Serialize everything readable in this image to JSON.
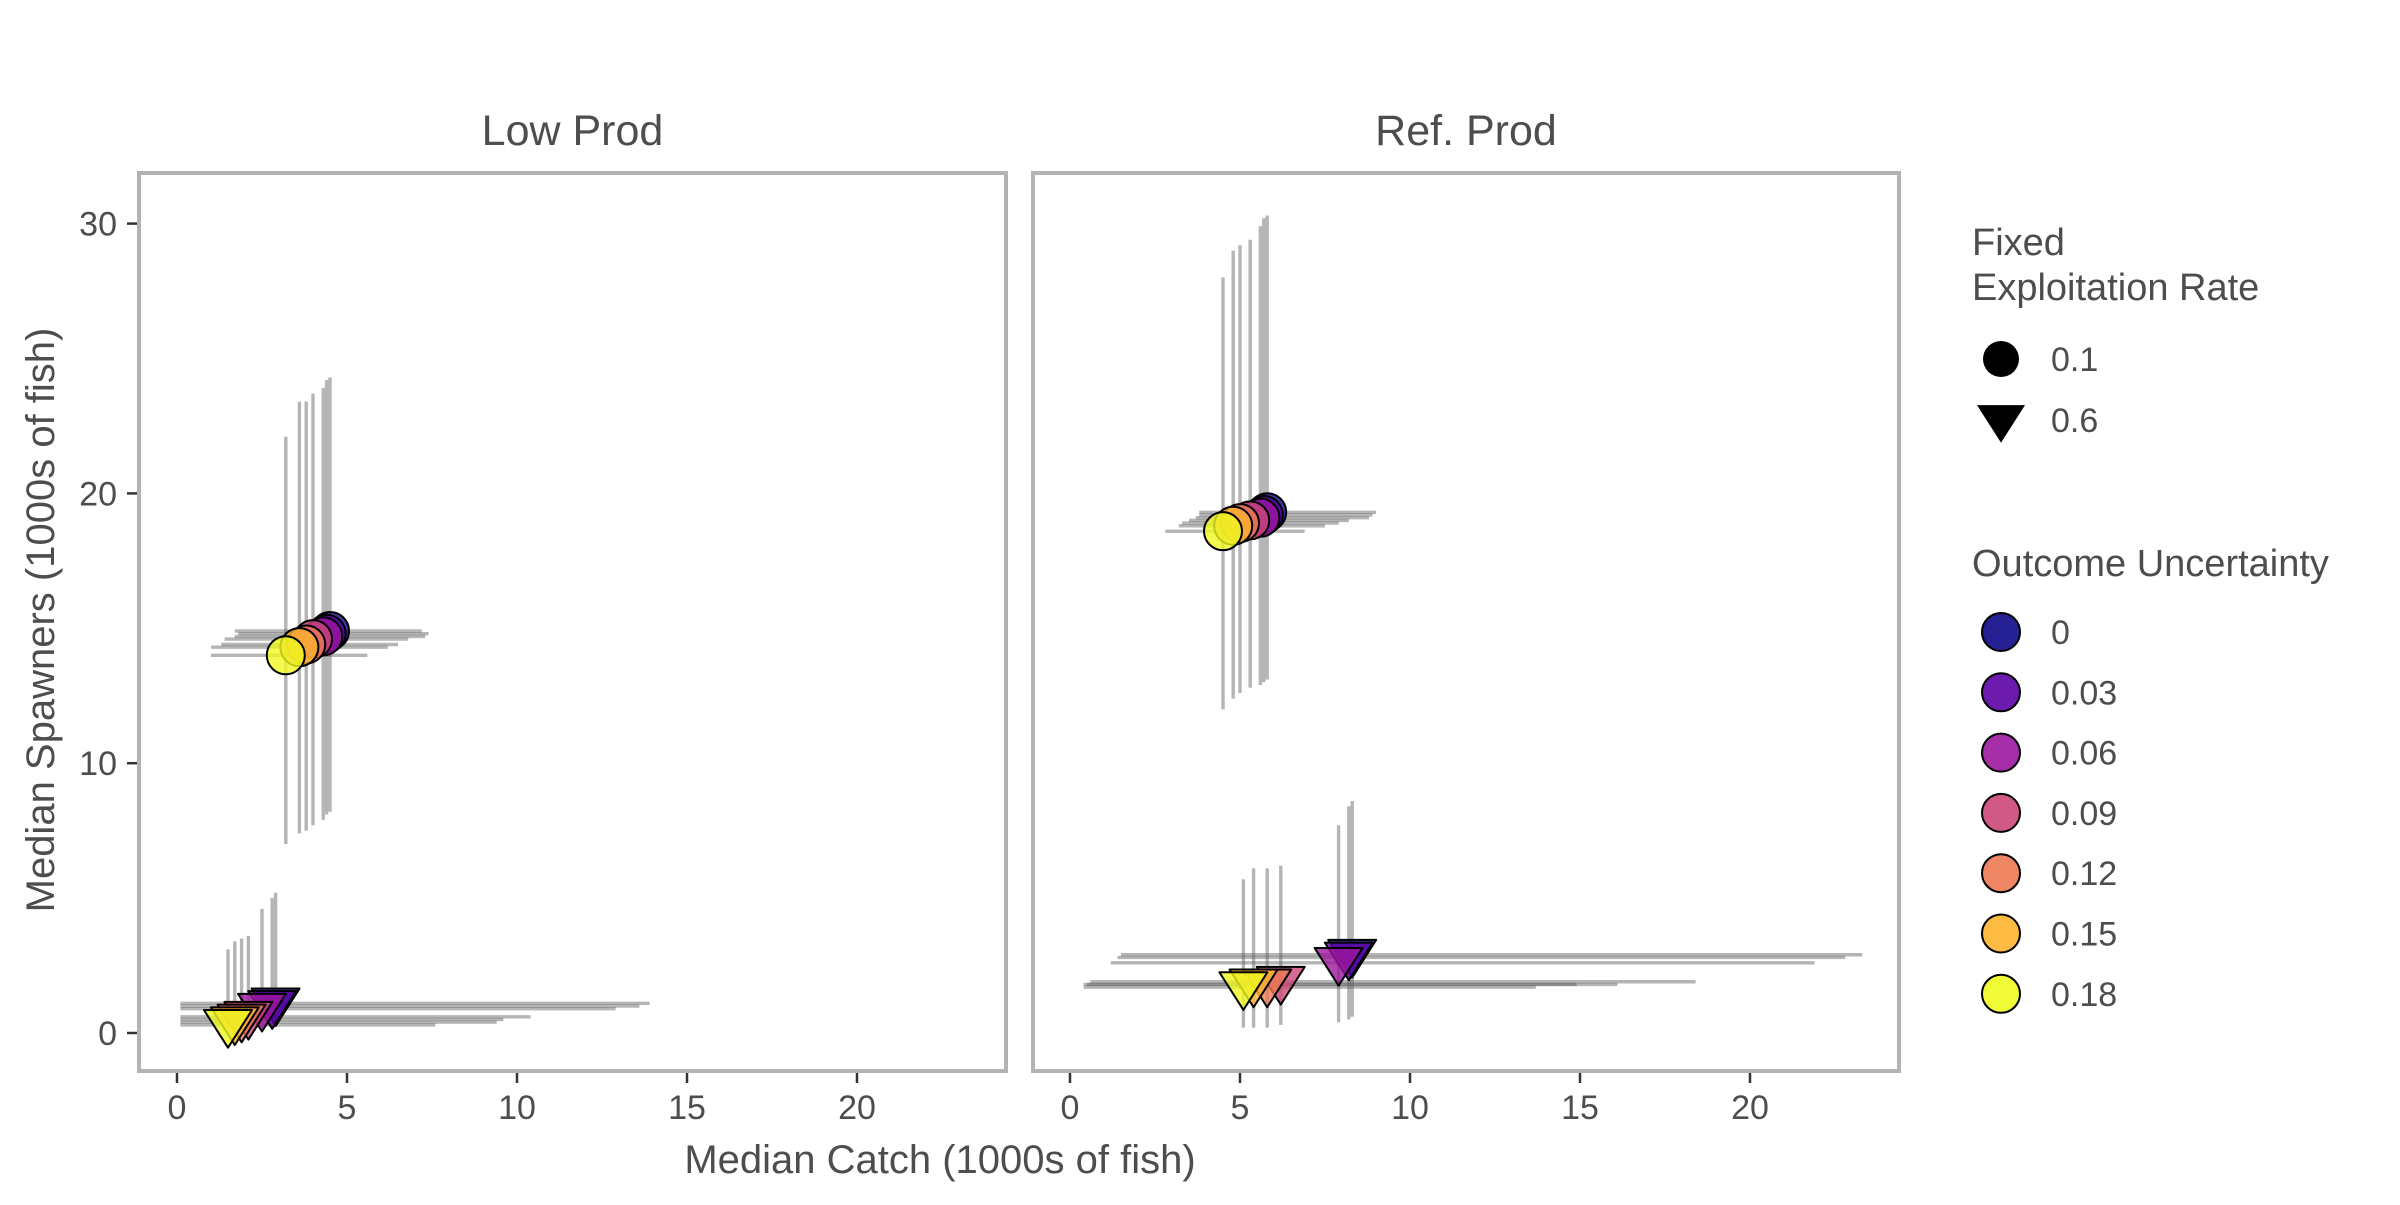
{
  "chart_data": {
    "type": "scatter",
    "xlabel": "Median Catch (1000s of fish)",
    "ylabel": "Median Spawners  (1000s of fish)",
    "xlim": [
      -1,
      24.5
    ],
    "ylim": [
      -1.4,
      32
    ],
    "xticks": [
      "0",
      "5",
      "10",
      "15",
      "20"
    ],
    "yticks": [
      "0",
      "10",
      "20",
      "30"
    ],
    "grid": false,
    "legend_position": "right",
    "facets": [
      {
        "title": "Low Prod",
        "points": [
          {
            "er": 0.1,
            "ou": 0,
            "x": 4.5,
            "y": 14.9,
            "x_lo": 1.7,
            "x_hi": 7.2,
            "y_lo": 8.2,
            "y_hi": 24.3
          },
          {
            "er": 0.1,
            "ou": 0.03,
            "x": 4.4,
            "y": 14.8,
            "x_lo": 1.8,
            "x_hi": 7.4,
            "y_lo": 8.1,
            "y_hi": 24.2
          },
          {
            "er": 0.1,
            "ou": 0.06,
            "x": 4.3,
            "y": 14.7,
            "x_lo": 1.7,
            "x_hi": 7.3,
            "y_lo": 7.9,
            "y_hi": 23.9
          },
          {
            "er": 0.1,
            "ou": 0.09,
            "x": 4.0,
            "y": 14.6,
            "x_lo": 1.4,
            "x_hi": 6.8,
            "y_lo": 7.7,
            "y_hi": 23.7
          },
          {
            "er": 0.1,
            "ou": 0.12,
            "x": 3.8,
            "y": 14.4,
            "x_lo": 1.3,
            "x_hi": 6.5,
            "y_lo": 7.5,
            "y_hi": 23.4
          },
          {
            "er": 0.1,
            "ou": 0.15,
            "x": 3.6,
            "y": 14.3,
            "x_lo": 1.0,
            "x_hi": 6.2,
            "y_lo": 7.4,
            "y_hi": 23.4
          },
          {
            "er": 0.1,
            "ou": 0.18,
            "x": 3.2,
            "y": 14.0,
            "x_lo": 1.0,
            "x_hi": 5.6,
            "y_lo": 7.0,
            "y_hi": 22.1
          },
          {
            "er": 0.6,
            "ou": 0,
            "x": 2.9,
            "y": 1.1,
            "x_lo": 0.1,
            "x_hi": 13.9,
            "y_lo": 0.3,
            "y_hi": 5.2
          },
          {
            "er": 0.6,
            "ou": 0.03,
            "x": 2.8,
            "y": 1.0,
            "x_lo": 0.1,
            "x_hi": 13.6,
            "y_lo": 0.3,
            "y_hi": 5.0
          },
          {
            "er": 0.6,
            "ou": 0.06,
            "x": 2.5,
            "y": 0.9,
            "x_lo": 0.1,
            "x_hi": 12.9,
            "y_lo": 0.2,
            "y_hi": 4.6
          },
          {
            "er": 0.6,
            "ou": 0.09,
            "x": 2.1,
            "y": 0.6,
            "x_lo": 0.1,
            "x_hi": 10.4,
            "y_lo": 0.1,
            "y_hi": 3.6
          },
          {
            "er": 0.6,
            "ou": 0.12,
            "x": 1.9,
            "y": 0.5,
            "x_lo": 0.1,
            "x_hi": 9.6,
            "y_lo": 0.1,
            "y_hi": 3.5
          },
          {
            "er": 0.6,
            "ou": 0.15,
            "x": 1.7,
            "y": 0.4,
            "x_lo": 0.1,
            "x_hi": 9.4,
            "y_lo": 0.1,
            "y_hi": 3.4
          },
          {
            "er": 0.6,
            "ou": 0.18,
            "x": 1.5,
            "y": 0.3,
            "x_lo": 0.1,
            "x_hi": 7.6,
            "y_lo": 0.0,
            "y_hi": 3.1
          }
        ]
      },
      {
        "title": "Ref. Prod",
        "points": [
          {
            "er": 0.1,
            "ou": 0,
            "x": 5.8,
            "y": 19.3,
            "x_lo": 3.8,
            "x_hi": 9.0,
            "y_lo": 13.1,
            "y_hi": 30.3
          },
          {
            "er": 0.1,
            "ou": 0.03,
            "x": 5.7,
            "y": 19.2,
            "x_lo": 3.8,
            "x_hi": 8.9,
            "y_lo": 13.0,
            "y_hi": 30.2
          },
          {
            "er": 0.1,
            "ou": 0.06,
            "x": 5.6,
            "y": 19.1,
            "x_lo": 3.7,
            "x_hi": 8.8,
            "y_lo": 12.9,
            "y_hi": 29.9
          },
          {
            "er": 0.1,
            "ou": 0.09,
            "x": 5.3,
            "y": 19.0,
            "x_lo": 3.5,
            "x_hi": 8.2,
            "y_lo": 12.8,
            "y_hi": 29.4
          },
          {
            "er": 0.1,
            "ou": 0.12,
            "x": 5.0,
            "y": 18.9,
            "x_lo": 3.3,
            "x_hi": 7.9,
            "y_lo": 12.6,
            "y_hi": 29.2
          },
          {
            "er": 0.1,
            "ou": 0.15,
            "x": 4.8,
            "y": 18.8,
            "x_lo": 3.2,
            "x_hi": 7.5,
            "y_lo": 12.4,
            "y_hi": 29.0
          },
          {
            "er": 0.1,
            "ou": 0.18,
            "x": 4.5,
            "y": 18.6,
            "x_lo": 2.8,
            "x_hi": 6.9,
            "y_lo": 12.0,
            "y_hi": 28.0
          },
          {
            "er": 0.6,
            "ou": 0,
            "x": 8.3,
            "y": 2.9,
            "x_lo": 1.5,
            "x_hi": 23.3,
            "y_lo": 0.6,
            "y_hi": 8.6
          },
          {
            "er": 0.6,
            "ou": 0.03,
            "x": 8.2,
            "y": 2.8,
            "x_lo": 1.4,
            "x_hi": 22.8,
            "y_lo": 0.5,
            "y_hi": 8.4
          },
          {
            "er": 0.6,
            "ou": 0.06,
            "x": 7.9,
            "y": 2.6,
            "x_lo": 1.2,
            "x_hi": 21.9,
            "y_lo": 0.4,
            "y_hi": 7.7
          },
          {
            "er": 0.6,
            "ou": 0.09,
            "x": 6.2,
            "y": 1.9,
            "x_lo": 0.6,
            "x_hi": 18.4,
            "y_lo": 0.3,
            "y_hi": 6.2
          },
          {
            "er": 0.6,
            "ou": 0.12,
            "x": 5.8,
            "y": 1.8,
            "x_lo": 0.5,
            "x_hi": 16.1,
            "y_lo": 0.2,
            "y_hi": 6.1
          },
          {
            "er": 0.6,
            "ou": 0.15,
            "x": 5.4,
            "y": 1.8,
            "x_lo": 0.4,
            "x_hi": 14.9,
            "y_lo": 0.2,
            "y_hi": 6.1
          },
          {
            "er": 0.6,
            "ou": 0.18,
            "x": 5.1,
            "y": 1.7,
            "x_lo": 0.4,
            "x_hi": 13.7,
            "y_lo": 0.2,
            "y_hi": 5.7
          }
        ]
      }
    ],
    "legend_shape": {
      "title_lines": [
        "Fixed",
        "Exploitation Rate"
      ],
      "items": [
        {
          "label": "0.1",
          "shape": "circle"
        },
        {
          "label": "0.6",
          "shape": "triangle-down"
        }
      ]
    },
    "legend_color": {
      "title": "Outcome Uncertainty",
      "items": [
        {
          "label": "0",
          "value": 0,
          "color": "#0d0887"
        },
        {
          "label": "0.03",
          "value": 0.03,
          "color": "#5d01a6"
        },
        {
          "label": "0.06",
          "value": 0.06,
          "color": "#9c179e"
        },
        {
          "label": "0.09",
          "value": 0.09,
          "color": "#cc4778"
        },
        {
          "label": "0.12",
          "value": 0.12,
          "color": "#ed7953"
        },
        {
          "label": "0.15",
          "value": 0.15,
          "color": "#fdb42f"
        },
        {
          "label": "0.18",
          "value": 0.18,
          "color": "#f0f921"
        }
      ]
    }
  }
}
